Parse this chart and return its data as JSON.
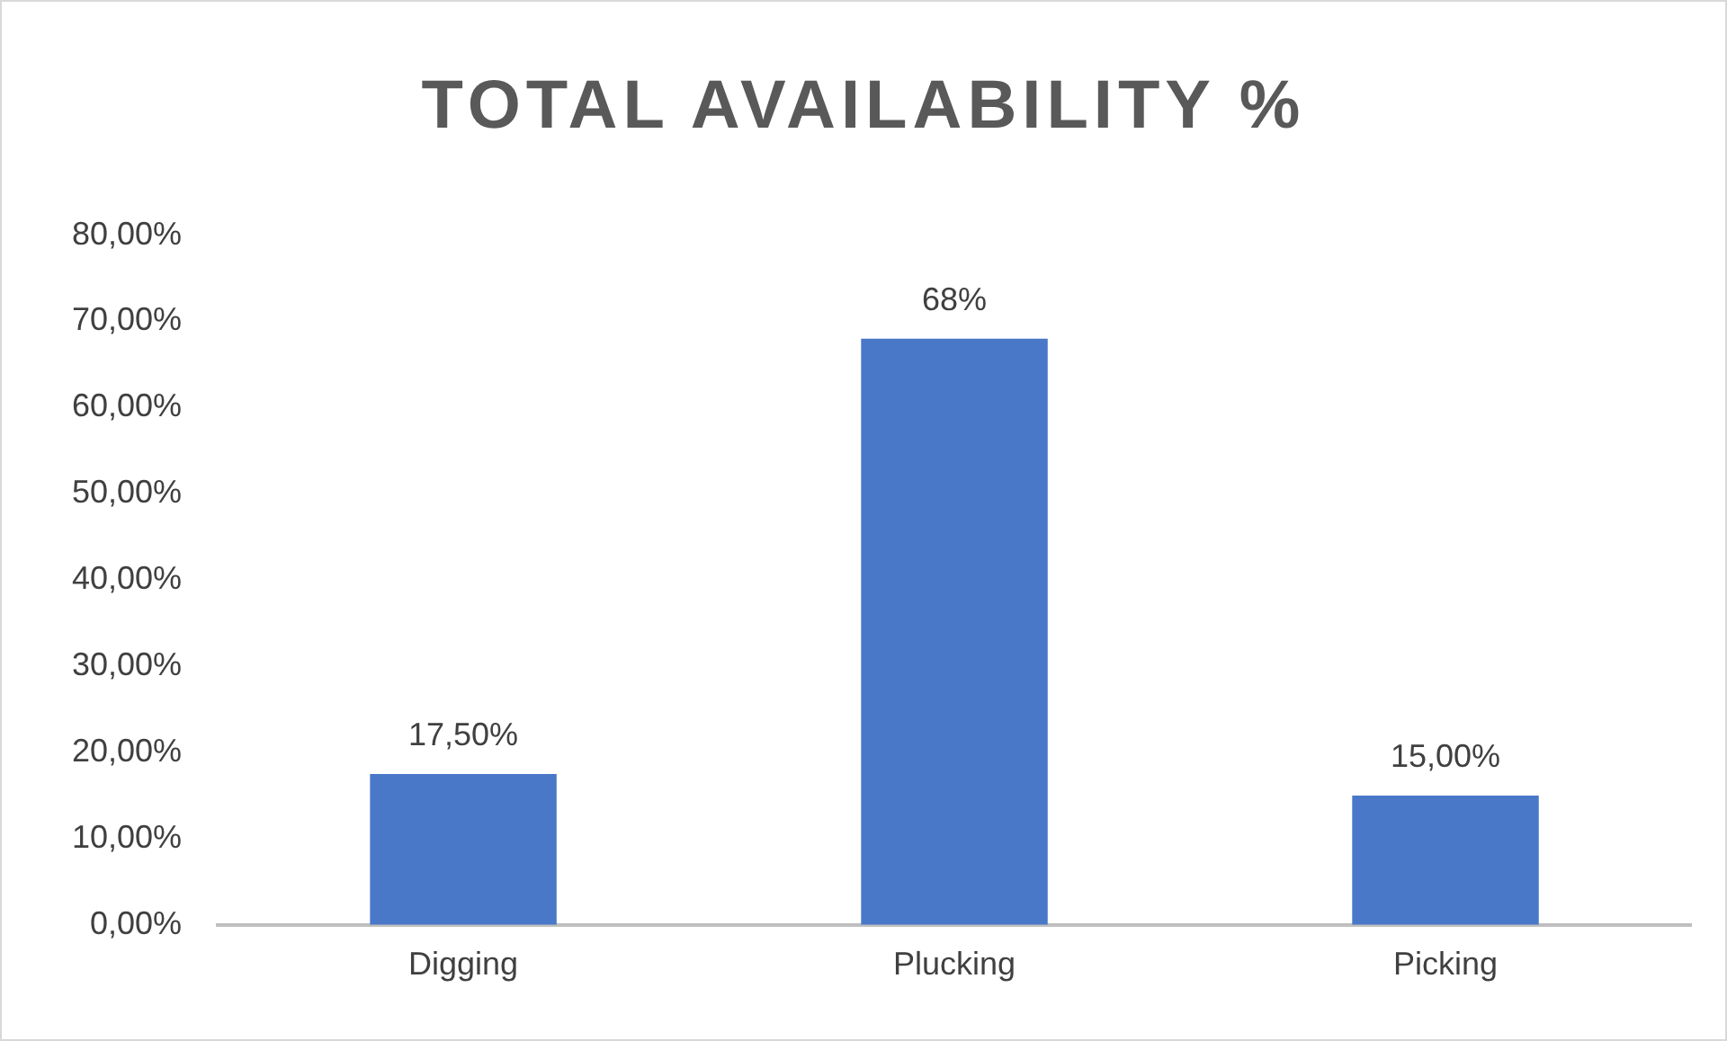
{
  "chart_data": {
    "type": "bar",
    "title": "TOTAL AVAILABILITY %",
    "categories": [
      "Digging",
      "Plucking",
      "Picking"
    ],
    "values": [
      17.5,
      68,
      15
    ],
    "value_labels": [
      "17,50%",
      "68%",
      "15,00%"
    ],
    "color": "#4a78c8",
    "ylim": [
      0,
      80
    ],
    "yticks": [
      {
        "value": 0,
        "label": "0,00%"
      },
      {
        "value": 10,
        "label": "10,00%"
      },
      {
        "value": 20,
        "label": "20,00%"
      },
      {
        "value": 30,
        "label": "30,00%"
      },
      {
        "value": 40,
        "label": "40,00%"
      },
      {
        "value": 50,
        "label": "50,00%"
      },
      {
        "value": 60,
        "label": "60,00%"
      },
      {
        "value": 70,
        "label": "70,00%"
      },
      {
        "value": 80,
        "label": "80,00%"
      }
    ],
    "grid": false,
    "legend": false
  }
}
